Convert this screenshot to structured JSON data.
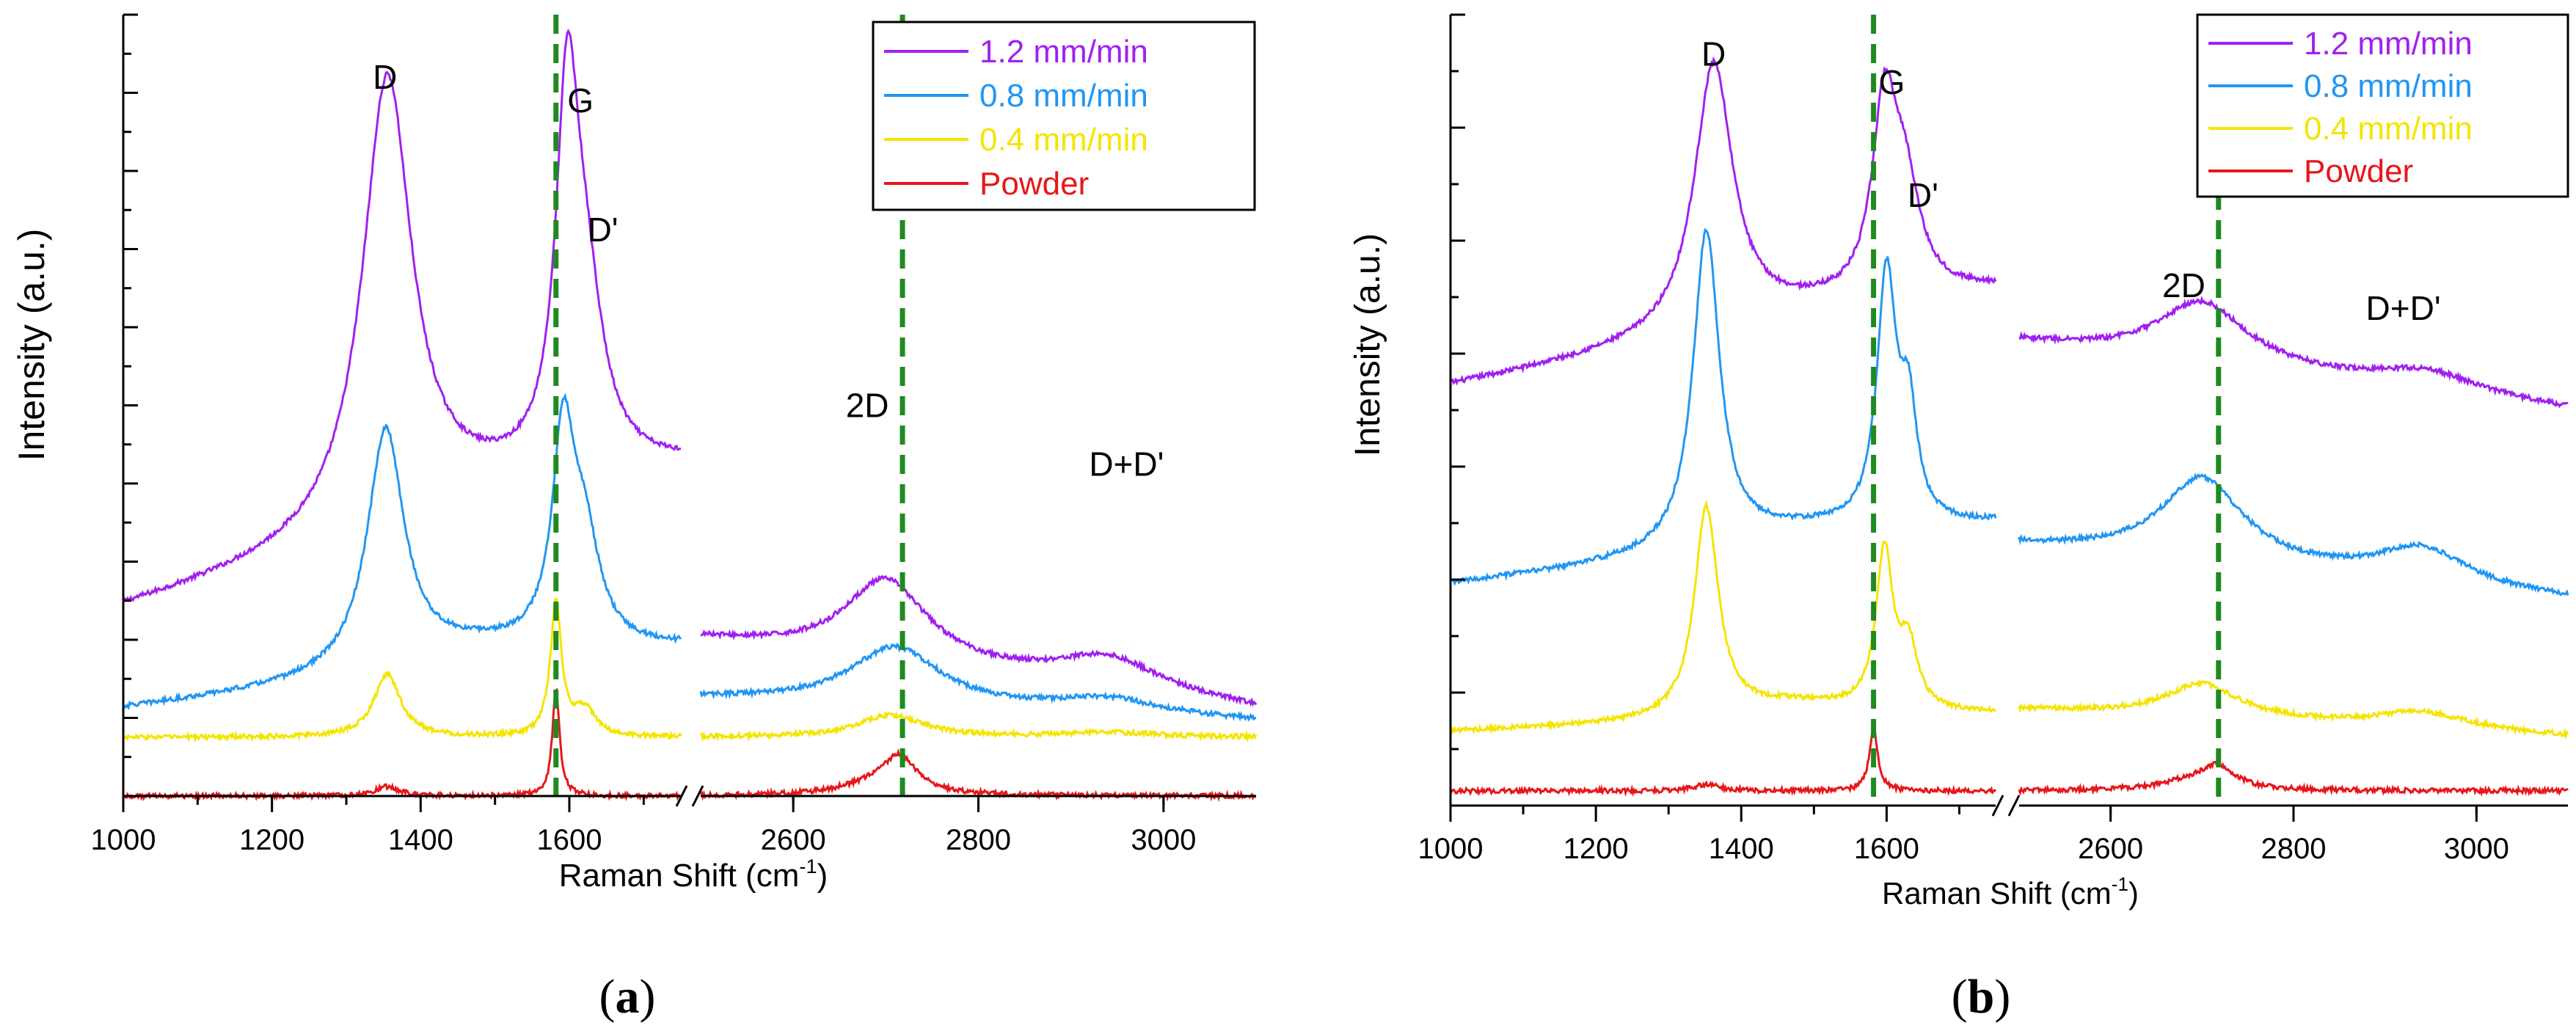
{
  "figure": {
    "panel_labels": [
      "(a)",
      "(b)"
    ],
    "panel_label_parts": [
      {
        "open": "(",
        "letter": "a",
        "close": ")"
      },
      {
        "open": "(",
        "letter": "b",
        "close": ")"
      }
    ]
  },
  "chart_data": [
    {
      "type": "line",
      "panel": "a",
      "title": "",
      "xlabel_main": "Raman Shift (cm",
      "xlabel_sup": "-1",
      "xlabel_end": ")",
      "ylabel": "Intensity (a.u.)",
      "x_segments": [
        [
          1000,
          1750
        ],
        [
          2500,
          3100
        ]
      ],
      "xticks": [
        1000,
        1200,
        1400,
        1600,
        2600,
        2800,
        3000
      ],
      "xtick_labels": [
        "1000",
        "1200",
        "1400",
        "1600",
        "2600",
        "2800",
        "3000"
      ],
      "ylim": [
        0,
        10
      ],
      "y_major_ticks": [
        1,
        2,
        3,
        4,
        5,
        6,
        7,
        8,
        9,
        10
      ],
      "axis_break": "//",
      "reference_lines": [
        1582,
        2718
      ],
      "reference_line_color": "#1f8a1f",
      "legend_position": "top-right",
      "series": [
        {
          "name": "1.2 mm/min",
          "color": "#a020f0",
          "baseline": [
            2.35,
            2.0
          ],
          "slope": [
            0.00233,
            -0.0015
          ],
          "peaks": [
            [
              1355,
              5.7,
              40
            ],
            [
              1597,
              4.2,
              18
            ],
            [
              1620,
              2.2,
              30
            ],
            [
              1460,
              0.4,
              200
            ],
            [
              2700,
              1.05,
              55
            ],
            [
              2940,
              0.42,
              70
            ]
          ]
        },
        {
          "name": "0.8 mm/min",
          "color": "#2196f3",
          "baseline": [
            1.1,
            1.25
          ],
          "slope": [
            0.001,
            -0.0005
          ],
          "peaks": [
            [
              1353,
              3.05,
              30
            ],
            [
              1592,
              2.6,
              18
            ],
            [
              1620,
              1.3,
              25
            ],
            [
              1470,
              0.3,
              150
            ],
            [
              2710,
              0.75,
              60
            ],
            [
              2940,
              0.2,
              70
            ]
          ]
        },
        {
          "name": "0.4 mm/min",
          "color": "#f5e400",
          "baseline": [
            0.75,
            0.75
          ],
          "slope": [
            0,
            0
          ],
          "peaks": [
            [
              1355,
              0.8,
              22
            ],
            [
              1582,
              1.7,
              9
            ],
            [
              1620,
              0.35,
              18
            ],
            [
              2705,
              0.28,
              45
            ],
            [
              2940,
              0.06,
              60
            ]
          ]
        },
        {
          "name": "Powder",
          "color": "#e8161b",
          "baseline": [
            0.0,
            0.0
          ],
          "slope": [
            0,
            0
          ],
          "peaks": [
            [
              1355,
              0.12,
              20
            ],
            [
              1582,
              1.35,
              6
            ],
            [
              2715,
              0.42,
              22
            ],
            [
              2690,
              0.15,
              45
            ]
          ]
        }
      ],
      "annotations": [
        {
          "text": "D",
          "x": 1352,
          "y": 9.05,
          "color": "#000000"
        },
        {
          "text": "G",
          "x": 1615,
          "y": 8.75,
          "color": "#000000"
        },
        {
          "text": "D'",
          "x": 1645,
          "y": 7.1,
          "color": "#000000"
        },
        {
          "text": "2D",
          "x": 2680,
          "y": 4.85,
          "color": "#000000"
        },
        {
          "text": "D+D'",
          "x": 2960,
          "y": 4.1,
          "color": "#000000"
        }
      ]
    },
    {
      "type": "line",
      "panel": "b",
      "title": "",
      "xlabel_main": "Raman Shift (cm",
      "xlabel_sup": "-1",
      "xlabel_end": ")",
      "ylabel": "Intensity (a.u.)",
      "x_segments": [
        [
          1000,
          1750
        ],
        [
          2500,
          3100
        ]
      ],
      "xticks": [
        1000,
        1200,
        1400,
        1600,
        2600,
        2800,
        3000
      ],
      "xtick_labels": [
        "1000",
        "1200",
        "1400",
        "1600",
        "2600",
        "2800",
        "3000"
      ],
      "ylim": [
        0,
        7
      ],
      "y_major_ticks": [
        1,
        2,
        3,
        4,
        5,
        6,
        7
      ],
      "axis_break": "//",
      "reference_lines": [
        1582,
        2718
      ],
      "reference_line_color": "#1f8a1f",
      "legend_position": "top-right",
      "series": [
        {
          "name": "1.2 mm/min",
          "color": "#a020f0",
          "baseline": [
            3.7,
            4.1
          ],
          "slope": [
            0.0011,
            -0.001
          ],
          "peaks": [
            [
              1362,
              2.35,
              32
            ],
            [
              1597,
              1.6,
              20
            ],
            [
              1625,
              0.9,
              25
            ],
            [
              1470,
              0.15,
              200
            ],
            [
              2700,
              0.55,
              60
            ],
            [
              2945,
              0.18,
              70
            ]
          ]
        },
        {
          "name": "0.8 mm/min",
          "color": "#2196f3",
          "baseline": [
            1.95,
            2.3
          ],
          "slope": [
            0.0007,
            -0.0008
          ],
          "peaks": [
            [
              1352,
              2.8,
              22
            ],
            [
              1600,
              2.2,
              16
            ],
            [
              1630,
              0.95,
              14
            ],
            [
              1470,
              0.15,
              150
            ],
            [
              2700,
              0.75,
              55
            ],
            [
              2940,
              0.32,
              60
            ]
          ]
        },
        {
          "name": "0.4 mm/min",
          "color": "#f5e400",
          "baseline": [
            0.65,
            0.85
          ],
          "slope": [
            0.0002,
            -0.0004
          ],
          "peaks": [
            [
              1352,
              1.85,
              20
            ],
            [
              1597,
              1.4,
              14
            ],
            [
              1630,
              0.55,
              15
            ],
            [
              1470,
              0.15,
              120
            ],
            [
              2700,
              0.3,
              50
            ],
            [
              2940,
              0.15,
              60
            ]
          ]
        },
        {
          "name": "Powder",
          "color": "#e8161b",
          "baseline": [
            0.13,
            0.13
          ],
          "slope": [
            0,
            0
          ],
          "peaks": [
            [
              1352,
              0.06,
              20
            ],
            [
              1582,
              0.55,
              7
            ],
            [
              2718,
              0.18,
              22
            ],
            [
              2690,
              0.08,
              45
            ]
          ]
        }
      ],
      "annotations": [
        {
          "text": "D",
          "x": 1362,
          "y": 6.55,
          "color": "#000000"
        },
        {
          "text": "G",
          "x": 1607,
          "y": 6.3,
          "color": "#000000"
        },
        {
          "text": "D'",
          "x": 1650,
          "y": 5.3,
          "color": "#000000"
        },
        {
          "text": "2D",
          "x": 2680,
          "y": 4.5,
          "color": "#000000"
        },
        {
          "text": "D+D'",
          "x": 2920,
          "y": 4.3,
          "color": "#000000"
        }
      ]
    }
  ]
}
